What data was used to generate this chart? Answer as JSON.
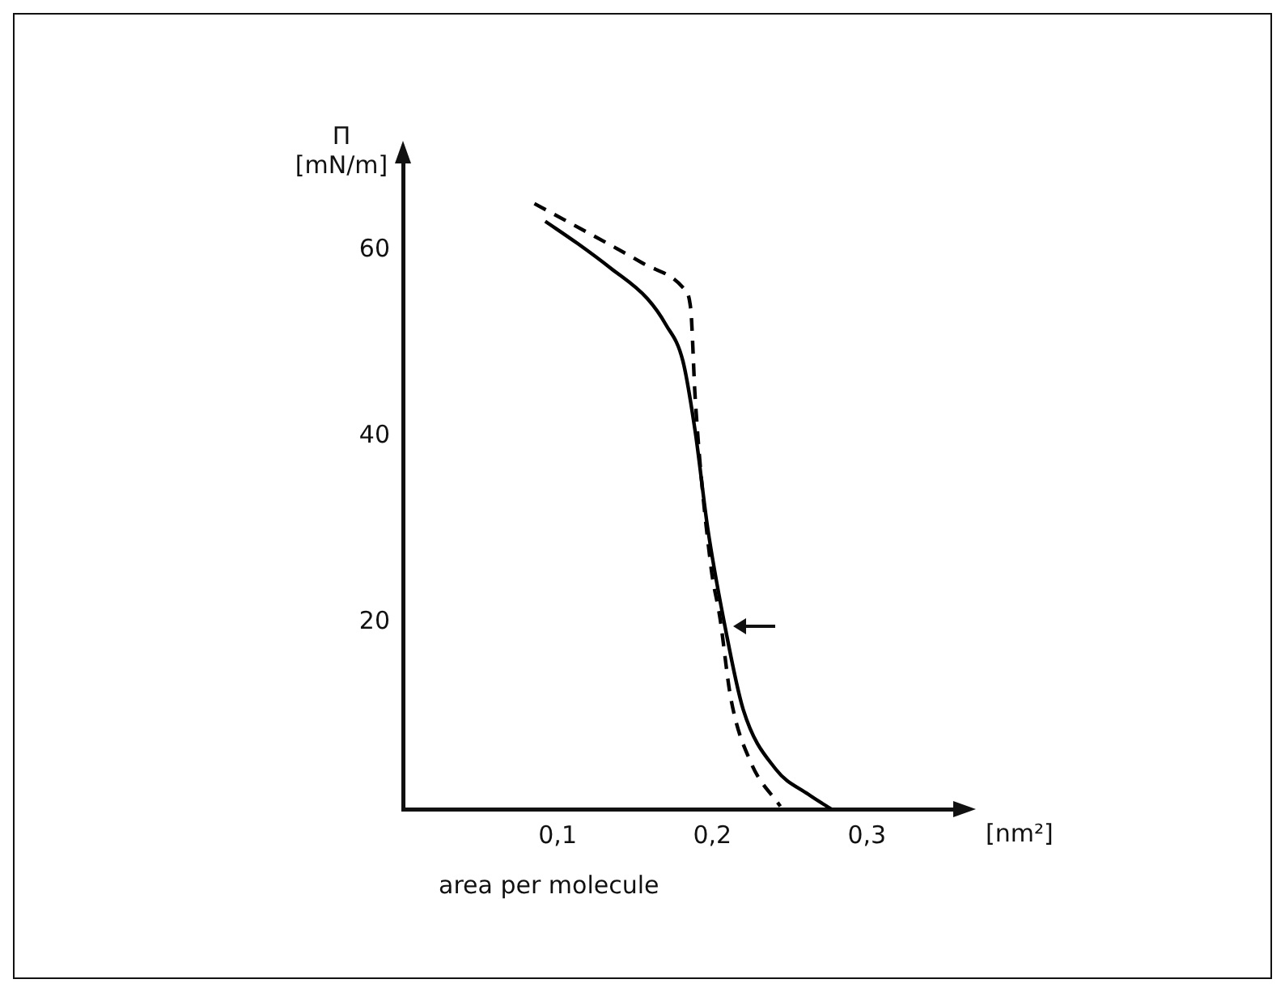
{
  "chart_data": {
    "type": "line",
    "xlabel": "area per molecule",
    "ylabel": "Π [mN/m]",
    "annotations": [
      "[nm²]"
    ],
    "xlim": [
      0,
      0.36
    ],
    "ylim": [
      0,
      70
    ],
    "xticks": [
      {
        "value": 0.1,
        "label": "0,1"
      },
      {
        "value": 0.2,
        "label": "0,2"
      },
      {
        "value": 0.3,
        "label": "0,3"
      }
    ],
    "yticks": [
      20,
      40,
      60
    ],
    "marker": "none",
    "legend": false,
    "series": [
      {
        "color": "#000000",
        "line_style": "solid",
        "x": [
          0.092,
          0.113,
          0.134,
          0.158,
          0.17,
          0.181,
          0.189,
          0.197,
          0.208,
          0.22,
          0.241,
          0.262,
          0.277
        ],
        "values": [
          63.1,
          60.7,
          58.1,
          54.8,
          52,
          48.1,
          40.5,
          30.2,
          19.8,
          10.7,
          4.3,
          1.6,
          0
        ]
      },
      {
        "color": "#000000",
        "line_style": "dashed",
        "x": [
          0.085,
          0.155,
          0.181,
          0.186,
          0.189,
          0.199,
          0.205,
          0.212,
          0.225,
          0.244
        ],
        "values": [
          65,
          58.6,
          56,
          53.8,
          44,
          26.2,
          20.5,
          11.9,
          5,
          0.3
        ]
      }
    ]
  }
}
